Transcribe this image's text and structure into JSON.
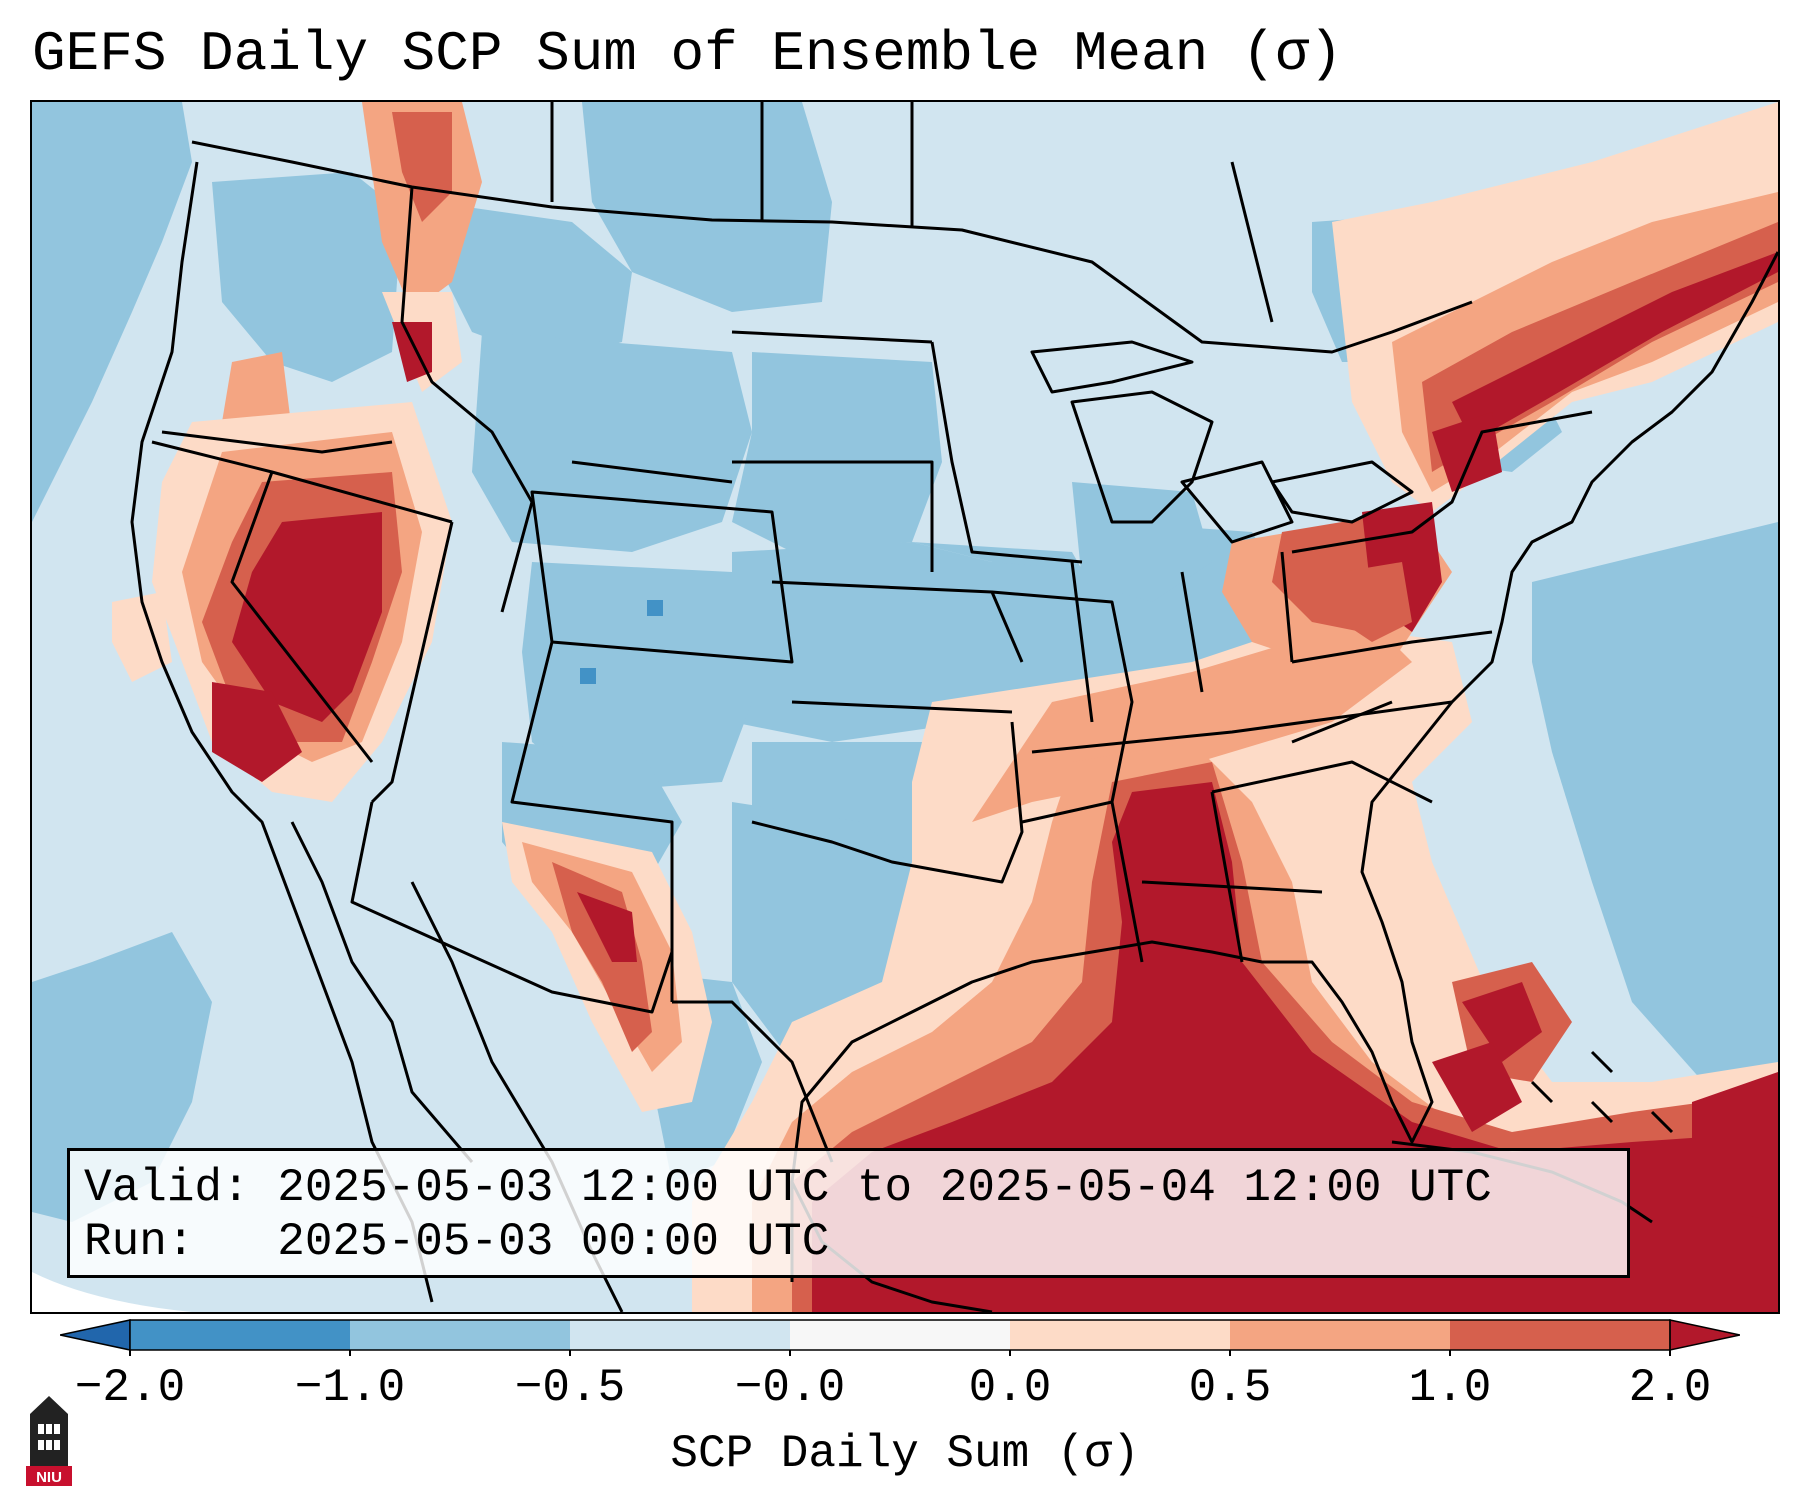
{
  "title": "GEFS Daily SCP Sum of Ensemble Mean (σ)",
  "info": {
    "valid_label": "Valid:",
    "valid_value": "2025-05-03 12:00 UTC to 2025-05-04 12:00 UTC",
    "run_label": "Run:",
    "run_value": "2025-05-03 00:00 UTC"
  },
  "colorbar": {
    "label": "SCP Daily Sum (σ)",
    "ticks": [
      "−2.0",
      "−1.0",
      "−0.5",
      "−0.0",
      "0.0",
      "0.5",
      "1.0",
      "2.0"
    ],
    "colors": [
      "#4292c6",
      "#92c5de",
      "#d1e5f0",
      "#f7f7f7",
      "#fddbc7",
      "#f4a582",
      "#d6604d",
      "#b2182b"
    ],
    "under_color": "#2166ac",
    "over_color": "#b2182b"
  },
  "map_colors": {
    "ocean_background": "#d1e5f0",
    "land_base": "#d1e5f0",
    "negative_moderate": "#92c5de",
    "negative_strong": "#4292c6",
    "positive_light": "#fddbc7",
    "positive_moderate": "#f4a582",
    "positive_strong": "#d6604d",
    "positive_max": "#b2182b",
    "outside_domain": "#ffffff",
    "borders": "#000000"
  },
  "logo": {
    "text": "NIU",
    "color": "#c8102e"
  }
}
